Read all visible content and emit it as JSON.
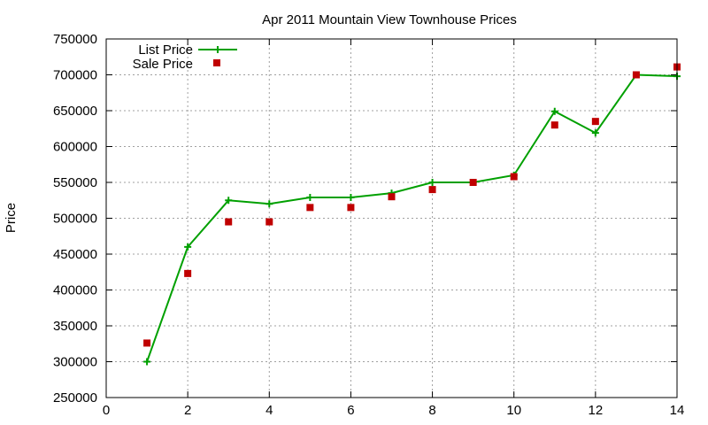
{
  "chart_data": {
    "type": "line",
    "title": "Apr 2011 Mountain View Townhouse Prices",
    "xlabel": "",
    "ylabel": "Price",
    "xlim": [
      0,
      14
    ],
    "ylim": [
      250000,
      750000
    ],
    "x_ticks": [
      "0",
      "2",
      "4",
      "6",
      "8",
      "10",
      "12",
      "14"
    ],
    "y_ticks": [
      "250000",
      "300000",
      "350000",
      "400000",
      "450000",
      "500000",
      "550000",
      "600000",
      "650000",
      "700000",
      "750000"
    ],
    "grid": true,
    "legend_position": "top-left",
    "series": [
      {
        "name": "List Price",
        "style": "line-with-plus-markers",
        "color": "#00a000",
        "x": [
          1,
          2,
          3,
          4,
          5,
          6,
          7,
          8,
          9,
          10,
          11,
          12,
          13,
          14
        ],
        "values": [
          300000,
          460000,
          525000,
          520000,
          529000,
          529000,
          535000,
          550000,
          550000,
          560000,
          649000,
          619000,
          700000,
          698000
        ]
      },
      {
        "name": "Sale Price",
        "style": "square-markers",
        "color": "#c00000",
        "x": [
          1,
          2,
          3,
          4,
          5,
          6,
          7,
          8,
          9,
          10,
          11,
          12,
          13,
          14
        ],
        "values": [
          326000,
          423000,
          495000,
          495000,
          515000,
          515000,
          530000,
          540000,
          550000,
          558000,
          630000,
          635000,
          700000,
          711000
        ]
      }
    ]
  }
}
